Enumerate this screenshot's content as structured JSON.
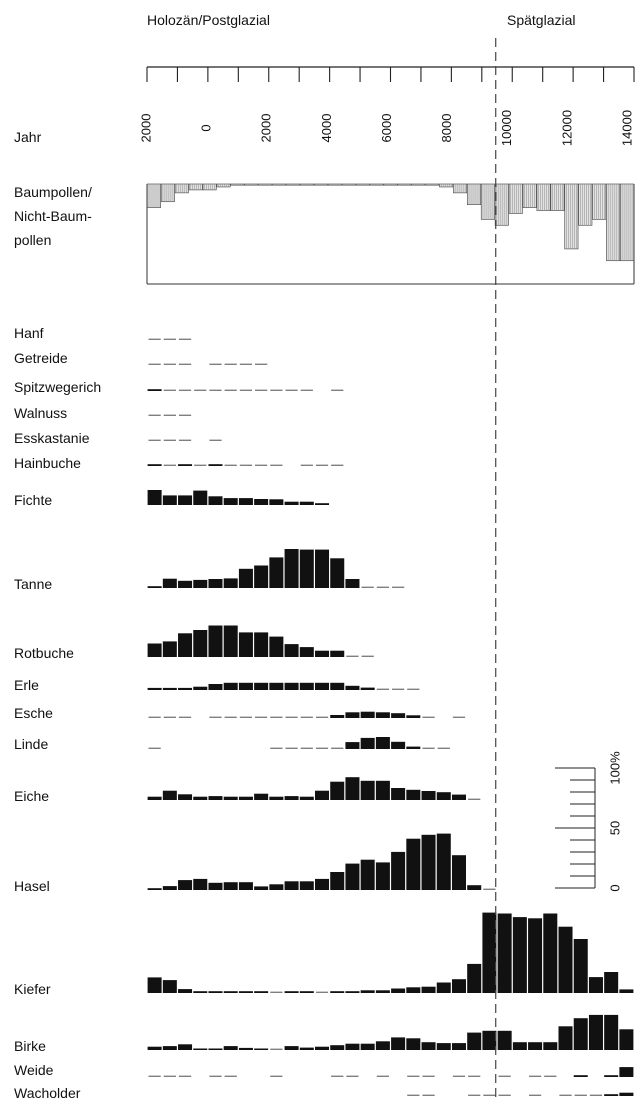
{
  "chart_data": {
    "type": "bar",
    "periods": {
      "holocene": "Holozän/Postglazial",
      "lateglacial": "Spätglazial"
    },
    "axis_label": "Jahr",
    "ticks": [
      "2000",
      "0",
      "2000",
      "4000",
      "6000",
      "8000",
      "10000",
      "12000",
      "14000"
    ],
    "tick_positions": [
      -2000,
      0,
      2000,
      4000,
      6000,
      8000,
      10000,
      12000,
      14000
    ],
    "x_range": [
      -2000,
      14000
    ],
    "boundary_year": 9600,
    "bins": 32,
    "scale_labels": [
      "100%",
      "50",
      "0"
    ],
    "ratio": {
      "labels": [
        "Baumpollen/",
        "Nicht-Baum-",
        "pollen"
      ],
      "values": [
        8,
        6,
        3,
        2,
        2,
        1,
        0,
        0,
        0,
        0,
        0,
        0,
        0,
        0,
        0,
        0,
        0,
        0,
        0,
        0,
        0,
        1,
        3,
        7,
        12,
        14,
        10,
        8,
        9,
        9,
        22,
        14,
        12,
        26,
        26
      ]
    },
    "series": [
      {
        "name": "Hanf",
        "values": [
          0.3,
          0.3,
          0.3,
          0,
          0,
          0,
          0,
          0,
          0,
          0,
          0,
          0,
          0,
          0,
          0,
          0,
          0,
          0,
          0,
          0,
          0,
          0,
          0,
          0,
          0,
          0,
          0,
          0,
          0,
          0,
          0,
          0
        ]
      },
      {
        "name": "Getreide",
        "values": [
          0.3,
          0.3,
          0.3,
          0,
          0.3,
          0.3,
          0.3,
          0.3,
          0,
          0,
          0,
          0,
          0,
          0,
          0,
          0,
          0,
          0,
          0,
          0,
          0,
          0,
          0,
          0,
          0,
          0,
          0,
          0,
          0,
          0,
          0,
          0
        ]
      },
      {
        "name": "Spitzwegerich",
        "values": [
          0.6,
          0.3,
          0.3,
          0.3,
          0.3,
          0.3,
          0.3,
          0.3,
          0.3,
          0.3,
          0.3,
          0,
          0.3,
          0,
          0,
          0,
          0,
          0,
          0,
          0,
          0,
          0,
          0,
          0,
          0,
          0,
          0,
          0,
          0,
          0,
          0,
          0
        ]
      },
      {
        "name": "Walnuss",
        "values": [
          0.3,
          0.3,
          0.3,
          0,
          0,
          0,
          0,
          0,
          0,
          0,
          0,
          0,
          0,
          0,
          0,
          0,
          0,
          0,
          0,
          0,
          0,
          0,
          0,
          0,
          0,
          0,
          0,
          0,
          0,
          0,
          0,
          0
        ]
      },
      {
        "name": "Esskastanie",
        "values": [
          0.3,
          0.3,
          0.3,
          0,
          0.3,
          0,
          0,
          0,
          0,
          0,
          0,
          0,
          0,
          0,
          0,
          0,
          0,
          0,
          0,
          0,
          0,
          0,
          0,
          0,
          0,
          0,
          0,
          0,
          0,
          0,
          0,
          0
        ]
      },
      {
        "name": "Hainbuche",
        "values": [
          0.6,
          0.3,
          0.6,
          0.3,
          0.6,
          0.3,
          0.3,
          0.3,
          0.3,
          0,
          0.3,
          0.3,
          0.3,
          0,
          0,
          0,
          0,
          0,
          0,
          0,
          0,
          0,
          0,
          0,
          0,
          0,
          0,
          0,
          0,
          0,
          0,
          0
        ]
      },
      {
        "name": "Fichte",
        "values": [
          5,
          3.2,
          3.2,
          4.8,
          2.9,
          2.3,
          2.3,
          2,
          1.9,
          1.1,
          1.1,
          0.6,
          0,
          0,
          0,
          0,
          0,
          0,
          0,
          0,
          0,
          0,
          0,
          0,
          0,
          0,
          0,
          0,
          0,
          0,
          0,
          0
        ]
      },
      {
        "name": "Tanne",
        "values": [
          0.6,
          3.1,
          2.4,
          2.7,
          3,
          3.2,
          6.4,
          7.5,
          10.2,
          13,
          12.8,
          12.8,
          9.9,
          3,
          0.3,
          0.3,
          0.3,
          0,
          0,
          0,
          0,
          0,
          0,
          0,
          0,
          0,
          0,
          0,
          0,
          0,
          0,
          0
        ]
      },
      {
        "name": "Rotbuche",
        "values": [
          4.5,
          5.2,
          7.9,
          9,
          10.5,
          10.5,
          8.2,
          8.2,
          6.8,
          4.3,
          3.3,
          2.1,
          2.1,
          0.3,
          0.3,
          0,
          0,
          0,
          0,
          0,
          0,
          0,
          0,
          0,
          0,
          0,
          0,
          0,
          0,
          0,
          0,
          0
        ]
      },
      {
        "name": "Erle",
        "values": [
          0.7,
          0.7,
          0.7,
          1.1,
          2,
          2.4,
          2.4,
          2.4,
          2.4,
          2.4,
          2.4,
          2.4,
          2.4,
          1.4,
          0.8,
          0.3,
          0.3,
          0.3,
          0,
          0,
          0,
          0,
          0,
          0,
          0,
          0,
          0,
          0,
          0,
          0,
          0,
          0
        ]
      },
      {
        "name": "Esche",
        "values": [
          0.3,
          0.3,
          0.3,
          0,
          0.3,
          0.3,
          0.3,
          0.3,
          0.3,
          0.3,
          0.3,
          0.3,
          1,
          1.9,
          2.1,
          1.9,
          1.6,
          0.9,
          0.3,
          0,
          0.3,
          0,
          0,
          0,
          0,
          0,
          0,
          0,
          0,
          0,
          0,
          0
        ]
      },
      {
        "name": "Linde",
        "values": [
          0.3,
          0,
          0,
          0,
          0,
          0,
          0,
          0,
          0.3,
          0.3,
          0.3,
          0.3,
          0.3,
          2.3,
          3.7,
          4,
          2.4,
          0.8,
          0.3,
          0.3,
          0,
          0,
          0,
          0,
          0,
          0,
          0,
          0,
          0,
          0,
          0,
          0
        ]
      },
      {
        "name": "Eiche",
        "values": [
          1.1,
          3.1,
          1.9,
          1.1,
          1.3,
          1.1,
          1.1,
          2.1,
          1.1,
          1.3,
          1.1,
          3.1,
          6.1,
          7.6,
          6.4,
          6.4,
          4,
          3.4,
          3,
          2.6,
          1.8,
          0.3,
          0,
          0,
          0,
          0,
          0,
          0,
          0,
          0,
          0,
          0
        ]
      },
      {
        "name": "Hasel",
        "values": [
          0.6,
          1.3,
          3.3,
          3.7,
          2.4,
          2.6,
          2.6,
          1.2,
          1.9,
          2.9,
          2.9,
          3.7,
          6,
          8.8,
          10.1,
          9.2,
          12.7,
          17.1,
          18.4,
          18.8,
          11.6,
          1.6,
          0.3,
          0,
          0,
          0,
          0,
          0,
          0,
          0,
          0,
          0
        ]
      },
      {
        "name": "Kiefer",
        "values": [
          5.2,
          4.3,
          1.3,
          0.6,
          0.6,
          0.6,
          0.6,
          0.6,
          0.3,
          0.6,
          0.6,
          0.3,
          0.6,
          0.6,
          0.9,
          0.9,
          1.5,
          1.9,
          2.1,
          3.5,
          4.6,
          9.7,
          26.8,
          26.5,
          25.3,
          24.9,
          26.5,
          22.1,
          18,
          5.3,
          7,
          1.2
        ]
      },
      {
        "name": "Birke",
        "values": [
          1.1,
          1.3,
          1.9,
          0.5,
          0.5,
          1.3,
          0.7,
          0.5,
          0.3,
          1.3,
          0.8,
          1.1,
          1.6,
          2.1,
          2.1,
          2.9,
          4.2,
          3.9,
          2.6,
          2.3,
          2.3,
          5.8,
          6.4,
          6.4,
          2.6,
          2.6,
          2.6,
          7.9,
          10.6,
          11.7,
          11.7,
          6.9
        ]
      },
      {
        "name": "Weide",
        "values": [
          0.3,
          0.3,
          0.3,
          0,
          0.3,
          0.3,
          0,
          0,
          0.3,
          0,
          0,
          0,
          0.3,
          0.3,
          0,
          0.3,
          0,
          0.3,
          0.3,
          0,
          0.3,
          0.3,
          0,
          0.3,
          0,
          0.3,
          0.3,
          0,
          0.6,
          0,
          0.6,
          3.3
        ]
      },
      {
        "name": "Wacholder",
        "values": [
          0,
          0,
          0,
          0,
          0,
          0,
          0,
          0,
          0,
          0,
          0,
          0,
          0,
          0,
          0,
          0,
          0,
          0.3,
          0.3,
          0,
          0,
          0.3,
          0.3,
          0.3,
          0,
          0.3,
          0,
          0.3,
          0.3,
          0.3,
          0.6,
          1.1
        ]
      }
    ]
  }
}
